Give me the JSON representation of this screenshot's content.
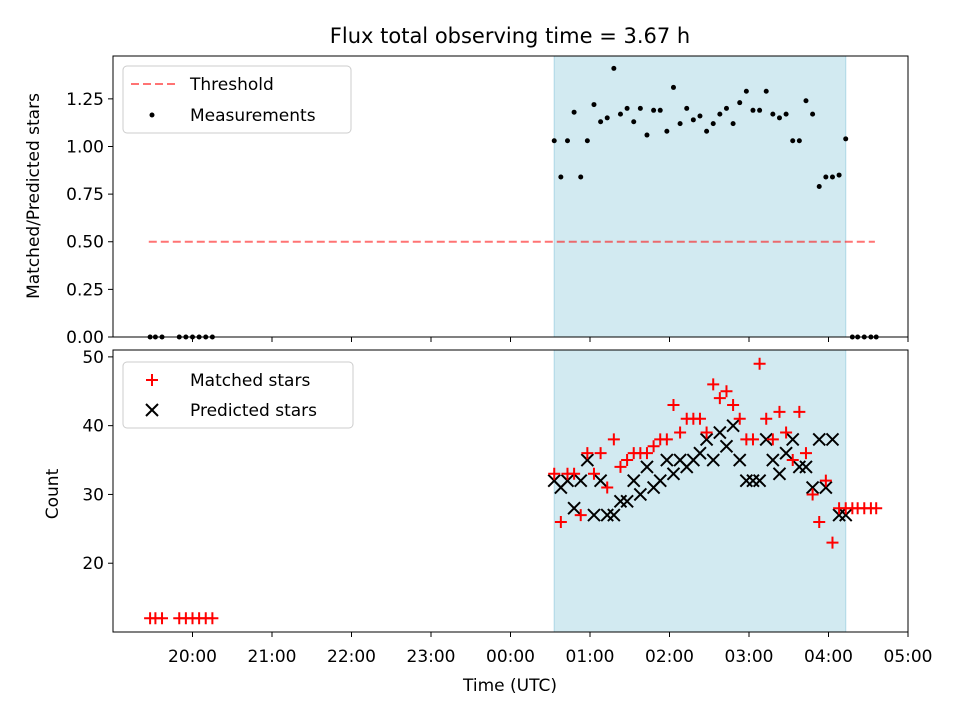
{
  "title": "Flux total observing time = 3.67 h",
  "colors": {
    "highlight": "#add8e6",
    "threshold": "#ff0000",
    "matched": "#ff0000",
    "predicted": "#000000",
    "measurements": "#000000"
  },
  "chart_data": [
    {
      "type": "scatter",
      "ylabel": "Matched/Predicted stars",
      "xlabel": "",
      "ylim": [
        0,
        1.475
      ],
      "yticks": [
        0.0,
        0.25,
        0.5,
        0.75,
        1.0,
        1.25
      ],
      "yticklabels": [
        "0.00",
        "0.25",
        "0.50",
        "0.75",
        "1.00",
        "1.25"
      ],
      "legend": {
        "placement": "upper-left",
        "entries": [
          "Threshold",
          "Measurements"
        ]
      },
      "highlight_span": [
        "00:33",
        "04:13"
      ],
      "threshold": {
        "name": "Threshold",
        "value": 0.5,
        "x_start": "19:27",
        "x_end": "04:35",
        "style": "dashed"
      },
      "measurements": {
        "name": "Measurements",
        "x": [
          "19:28",
          "19:32",
          "19:37",
          "19:50",
          "19:55",
          "20:00",
          "20:05",
          "20:10",
          "20:15",
          "00:33",
          "00:38",
          "00:43",
          "00:48",
          "00:53",
          "00:58",
          "01:03",
          "01:08",
          "01:13",
          "01:18",
          "01:23",
          "01:28",
          "01:33",
          "01:38",
          "01:43",
          "01:48",
          "01:53",
          "01:58",
          "02:03",
          "02:08",
          "02:13",
          "02:18",
          "02:23",
          "02:28",
          "02:33",
          "02:38",
          "02:43",
          "02:48",
          "02:53",
          "02:58",
          "03:03",
          "03:08",
          "03:13",
          "03:18",
          "03:23",
          "03:28",
          "03:33",
          "03:38",
          "03:43",
          "03:48",
          "03:53",
          "03:58",
          "04:03",
          "04:08",
          "04:13",
          "04:18",
          "04:22",
          "04:27",
          "04:32",
          "04:36"
        ],
        "y": [
          0,
          0,
          0,
          0,
          0,
          0,
          0,
          0,
          0,
          1.03,
          0.84,
          1.03,
          1.18,
          0.84,
          1.03,
          1.22,
          1.13,
          1.15,
          1.41,
          1.17,
          1.2,
          1.13,
          1.2,
          1.06,
          1.19,
          1.19,
          1.08,
          1.31,
          1.12,
          1.2,
          1.14,
          1.16,
          1.08,
          1.12,
          1.17,
          1.2,
          1.12,
          1.23,
          1.29,
          1.19,
          1.19,
          1.29,
          1.17,
          1.15,
          1.17,
          1.03,
          1.03,
          1.24,
          1.17,
          0.79,
          0.84,
          0.84,
          0.85,
          1.04,
          0,
          0,
          0,
          0,
          0
        ]
      }
    },
    {
      "type": "scatter",
      "ylabel": "Count",
      "xlabel": "Time (UTC)",
      "ylim": [
        10,
        51
      ],
      "yticks": [
        20,
        30,
        40,
        50
      ],
      "yticklabels": [
        "20",
        "30",
        "40",
        "50"
      ],
      "xlim": [
        "19:00",
        "05:00"
      ],
      "xticks": [
        "20:00",
        "21:00",
        "22:00",
        "23:00",
        "00:00",
        "01:00",
        "02:00",
        "03:00",
        "04:00",
        "05:00"
      ],
      "legend": {
        "placement": "upper-left",
        "entries": [
          "Matched stars",
          "Predicted stars"
        ]
      },
      "highlight_span": [
        "00:33",
        "04:13"
      ],
      "series": [
        {
          "name": "Matched stars",
          "marker": "+",
          "x": [
            "19:28",
            "19:32",
            "19:37",
            "19:50",
            "19:55",
            "20:00",
            "20:05",
            "20:10",
            "20:15",
            "00:33",
            "00:38",
            "00:43",
            "00:48",
            "00:53",
            "00:58",
            "01:03",
            "01:08",
            "01:13",
            "01:18",
            "01:23",
            "01:28",
            "01:33",
            "01:38",
            "01:43",
            "01:48",
            "01:53",
            "01:58",
            "02:03",
            "02:08",
            "02:13",
            "02:18",
            "02:23",
            "02:28",
            "02:33",
            "02:38",
            "02:43",
            "02:48",
            "02:53",
            "02:58",
            "03:03",
            "03:08",
            "03:13",
            "03:18",
            "03:23",
            "03:28",
            "03:33",
            "03:38",
            "03:43",
            "03:48",
            "03:53",
            "03:58",
            "04:03",
            "04:08",
            "04:13",
            "04:18",
            "04:22",
            "04:27",
            "04:32",
            "04:36"
          ],
          "y": [
            12,
            12,
            12,
            12,
            12,
            12,
            12,
            12,
            12,
            33,
            26,
            33,
            33,
            27,
            36,
            33,
            36,
            31,
            38,
            34,
            35,
            36,
            36,
            36,
            37,
            38,
            38,
            43,
            39,
            41,
            41,
            41,
            39,
            46,
            44,
            45,
            43,
            41,
            38,
            38,
            49,
            41,
            38,
            42,
            39,
            35,
            42,
            36,
            30,
            26,
            32,
            23,
            28,
            28,
            28,
            28,
            28,
            28,
            28
          ]
        },
        {
          "name": "Predicted stars",
          "marker": "x",
          "x": [
            "00:33",
            "00:38",
            "00:43",
            "00:48",
            "00:53",
            "00:58",
            "01:03",
            "01:08",
            "01:13",
            "01:18",
            "01:23",
            "01:28",
            "01:33",
            "01:38",
            "01:43",
            "01:48",
            "01:53",
            "01:58",
            "02:03",
            "02:08",
            "02:13",
            "02:18",
            "02:23",
            "02:28",
            "02:33",
            "02:38",
            "02:43",
            "02:48",
            "02:53",
            "02:58",
            "03:03",
            "03:08",
            "03:13",
            "03:18",
            "03:23",
            "03:28",
            "03:33",
            "03:38",
            "03:43",
            "03:48",
            "03:53",
            "03:58",
            "04:03",
            "04:08",
            "04:13"
          ],
          "y": [
            32,
            31,
            32,
            28,
            32,
            35,
            27,
            32,
            27,
            27,
            29,
            29,
            32,
            30,
            34,
            31,
            32,
            35,
            33,
            35,
            34,
            35,
            36,
            38,
            35,
            39,
            37,
            40,
            35,
            32,
            32,
            32,
            38,
            35,
            33,
            36,
            38,
            34,
            34,
            31,
            38,
            31,
            38,
            27,
            27
          ]
        }
      ]
    }
  ]
}
